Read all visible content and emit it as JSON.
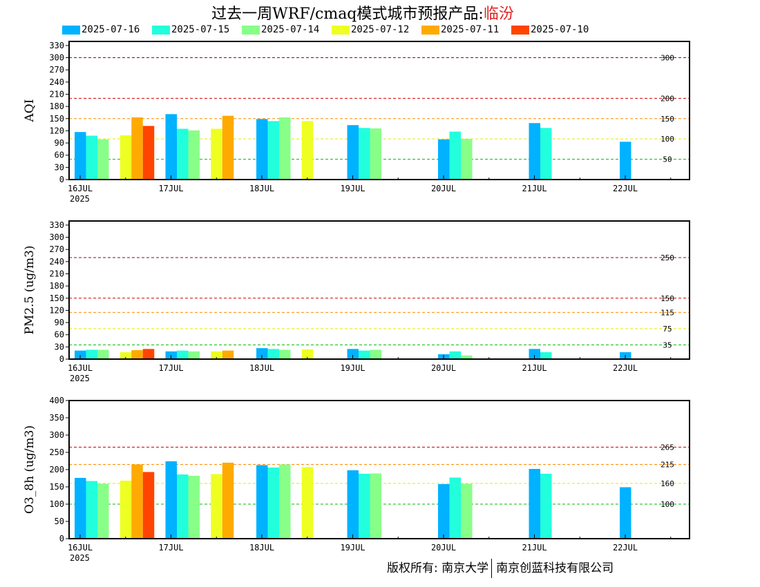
{
  "title": {
    "prefix": "过去一周WRF/cmaq模式城市预报产品:",
    "city": "临汾"
  },
  "legend": [
    {
      "label": "2025-07-16",
      "color": "#00b2ff"
    },
    {
      "label": "2025-07-15",
      "color": "#22ffdd"
    },
    {
      "label": "2025-07-14",
      "color": "#88ff88"
    },
    {
      "label": "2025-07-12",
      "color": "#eeff22"
    },
    {
      "label": "2025-07-11",
      "color": "#ffaa00"
    },
    {
      "label": "2025-07-10",
      "color": "#ff4400"
    }
  ],
  "footer": {
    "left": "版权所有: 南京大学",
    "right": "南京创蓝科技有限公司"
  },
  "chart_data": [
    {
      "type": "bar",
      "ylabel": "AQI",
      "ylim": [
        0,
        340
      ],
      "yticks": [
        0,
        30,
        60,
        90,
        120,
        150,
        180,
        210,
        240,
        270,
        300,
        330
      ],
      "x_tick_labels": [
        "16JUL",
        "17JUL",
        "18JUL",
        "19JUL",
        "20JUL",
        "21JUL",
        "22JUL"
      ],
      "x_tick_sublabel": "2025",
      "thresholds": [
        {
          "value": 300,
          "label": "300",
          "color": "#880044"
        },
        {
          "value": 200,
          "label": "200",
          "color": "#cc0000"
        },
        {
          "value": 150,
          "label": "150",
          "color": "#ff8800"
        },
        {
          "value": 100,
          "label": "100",
          "color": "#e6e600"
        },
        {
          "value": 50,
          "label": "50",
          "color": "#00bb00"
        }
      ],
      "groups": [
        {
          "day": 0,
          "bars": [
            {
              "series": 0,
              "value": 117
            },
            {
              "series": 1,
              "value": 108
            },
            {
              "series": 2,
              "value": 99
            }
          ]
        },
        {
          "day": 0.5,
          "bars": [
            {
              "series": 3,
              "value": 109
            },
            {
              "series": 4,
              "value": 153
            },
            {
              "series": 5,
              "value": 132
            }
          ]
        },
        {
          "day": 1,
          "bars": [
            {
              "series": 0,
              "value": 161
            },
            {
              "series": 1,
              "value": 125
            },
            {
              "series": 2,
              "value": 121
            }
          ]
        },
        {
          "day": 1.5,
          "bars": [
            {
              "series": 3,
              "value": 125
            },
            {
              "series": 4,
              "value": 157
            }
          ]
        },
        {
          "day": 2,
          "bars": [
            {
              "series": 0,
              "value": 149
            },
            {
              "series": 1,
              "value": 144
            },
            {
              "series": 2,
              "value": 153
            }
          ]
        },
        {
          "day": 2.5,
          "bars": [
            {
              "series": 3,
              "value": 144
            }
          ]
        },
        {
          "day": 3,
          "bars": [
            {
              "series": 0,
              "value": 134
            },
            {
              "series": 1,
              "value": 127
            },
            {
              "series": 2,
              "value": 126
            }
          ]
        },
        {
          "day": 4,
          "bars": [
            {
              "series": 0,
              "value": 99
            },
            {
              "series": 1,
              "value": 118
            },
            {
              "series": 2,
              "value": 100
            }
          ]
        },
        {
          "day": 5,
          "bars": [
            {
              "series": 0,
              "value": 139
            },
            {
              "series": 1,
              "value": 127
            }
          ]
        },
        {
          "day": 6,
          "bars": [
            {
              "series": 0,
              "value": 93
            }
          ]
        }
      ]
    },
    {
      "type": "bar",
      "ylabel": "PM2.5 (ug/m3)",
      "ylim": [
        0,
        340
      ],
      "yticks": [
        0,
        30,
        60,
        90,
        120,
        150,
        180,
        210,
        240,
        270,
        300,
        330
      ],
      "x_tick_labels": [
        "16JUL",
        "17JUL",
        "18JUL",
        "19JUL",
        "20JUL",
        "21JUL",
        "22JUL"
      ],
      "x_tick_sublabel": "2025",
      "thresholds": [
        {
          "value": 250,
          "label": "250",
          "color": "#880044"
        },
        {
          "value": 150,
          "label": "150",
          "color": "#cc0000"
        },
        {
          "value": 115,
          "label": "115",
          "color": "#ff8800"
        },
        {
          "value": 75,
          "label": "75",
          "color": "#e6e600"
        },
        {
          "value": 35,
          "label": "35",
          "color": "#00bb00"
        }
      ],
      "groups": [
        {
          "day": 0,
          "bars": [
            {
              "series": 0,
              "value": 21
            },
            {
              "series": 1,
              "value": 23
            },
            {
              "series": 2,
              "value": 23
            }
          ]
        },
        {
          "day": 0.5,
          "bars": [
            {
              "series": 3,
              "value": 17
            },
            {
              "series": 4,
              "value": 22
            },
            {
              "series": 5,
              "value": 25
            }
          ]
        },
        {
          "day": 1,
          "bars": [
            {
              "series": 0,
              "value": 19
            },
            {
              "series": 1,
              "value": 21
            },
            {
              "series": 2,
              "value": 19
            }
          ]
        },
        {
          "day": 1.5,
          "bars": [
            {
              "series": 3,
              "value": 19
            },
            {
              "series": 4,
              "value": 21
            }
          ]
        },
        {
          "day": 2,
          "bars": [
            {
              "series": 0,
              "value": 27
            },
            {
              "series": 1,
              "value": 25
            },
            {
              "series": 2,
              "value": 23
            }
          ]
        },
        {
          "day": 2.5,
          "bars": [
            {
              "series": 3,
              "value": 24
            }
          ]
        },
        {
          "day": 3,
          "bars": [
            {
              "series": 0,
              "value": 25
            },
            {
              "series": 1,
              "value": 21
            },
            {
              "series": 2,
              "value": 23
            }
          ]
        },
        {
          "day": 4,
          "bars": [
            {
              "series": 0,
              "value": 12
            },
            {
              "series": 1,
              "value": 19
            },
            {
              "series": 2,
              "value": 9
            }
          ]
        },
        {
          "day": 5,
          "bars": [
            {
              "series": 0,
              "value": 25
            },
            {
              "series": 1,
              "value": 17
            }
          ]
        },
        {
          "day": 6,
          "bars": [
            {
              "series": 0,
              "value": 17
            }
          ]
        }
      ]
    },
    {
      "type": "bar",
      "ylabel": "O3_8h (ug/m3)",
      "ylim": [
        0,
        400
      ],
      "yticks": [
        0,
        50,
        100,
        150,
        200,
        250,
        300,
        350,
        400
      ],
      "x_tick_labels": [
        "16JUL",
        "17JUL",
        "18JUL",
        "19JUL",
        "20JUL",
        "21JUL",
        "22JUL"
      ],
      "x_tick_sublabel": "2025",
      "thresholds": [
        {
          "value": 265,
          "label": "265",
          "color": "#cc0000"
        },
        {
          "value": 215,
          "label": "215",
          "color": "#ff8800"
        },
        {
          "value": 160,
          "label": "160",
          "color": "#e6e600"
        },
        {
          "value": 100,
          "label": "100",
          "color": "#00bb00"
        }
      ],
      "groups": [
        {
          "day": 0,
          "bars": [
            {
              "series": 0,
              "value": 176
            },
            {
              "series": 1,
              "value": 167
            },
            {
              "series": 2,
              "value": 159
            }
          ]
        },
        {
          "day": 0.5,
          "bars": [
            {
              "series": 3,
              "value": 168
            },
            {
              "series": 4,
              "value": 215
            },
            {
              "series": 5,
              "value": 193
            }
          ]
        },
        {
          "day": 1,
          "bars": [
            {
              "series": 0,
              "value": 224
            },
            {
              "series": 1,
              "value": 186
            },
            {
              "series": 2,
              "value": 182
            }
          ]
        },
        {
          "day": 1.5,
          "bars": [
            {
              "series": 3,
              "value": 187
            },
            {
              "series": 4,
              "value": 220
            }
          ]
        },
        {
          "day": 2,
          "bars": [
            {
              "series": 0,
              "value": 213
            },
            {
              "series": 1,
              "value": 206
            },
            {
              "series": 2,
              "value": 215
            }
          ]
        },
        {
          "day": 2.5,
          "bars": [
            {
              "series": 3,
              "value": 207
            }
          ]
        },
        {
          "day": 3,
          "bars": [
            {
              "series": 0,
              "value": 198
            },
            {
              "series": 1,
              "value": 188
            },
            {
              "series": 2,
              "value": 189
            }
          ]
        },
        {
          "day": 4,
          "bars": [
            {
              "series": 0,
              "value": 158
            },
            {
              "series": 1,
              "value": 177
            },
            {
              "series": 2,
              "value": 159
            }
          ]
        },
        {
          "day": 5,
          "bars": [
            {
              "series": 0,
              "value": 202
            },
            {
              "series": 1,
              "value": 188
            }
          ]
        },
        {
          "day": 6,
          "bars": [
            {
              "series": 0,
              "value": 149
            }
          ]
        }
      ]
    }
  ]
}
